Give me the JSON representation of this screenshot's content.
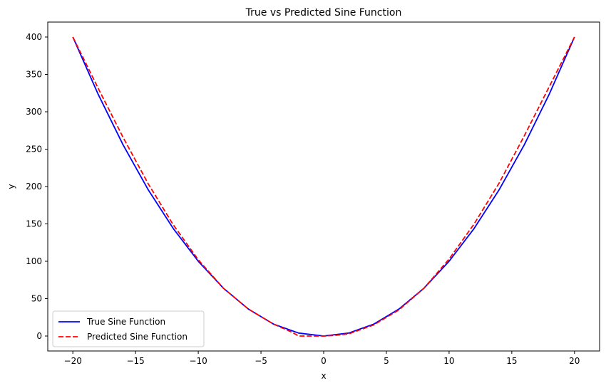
{
  "chart_data": {
    "type": "line",
    "title": "True vs Predicted Sine Function",
    "xlabel": "x",
    "ylabel": "y",
    "xlim": [
      -22,
      22
    ],
    "ylim": [
      -20,
      420
    ],
    "xticks": [
      -20,
      -15,
      -10,
      -5,
      0,
      5,
      10,
      15,
      20
    ],
    "yticks": [
      0,
      50,
      100,
      150,
      200,
      250,
      300,
      350,
      400
    ],
    "grid": false,
    "legend_position": "lower-left",
    "series": [
      {
        "name": "True Sine Function",
        "color": "#0000ff",
        "style": "solid",
        "x": [
          -20,
          -18,
          -16,
          -14,
          -12,
          -10,
          -8,
          -6,
          -4,
          -2,
          0,
          2,
          4,
          6,
          8,
          10,
          12,
          14,
          16,
          18,
          20
        ],
        "y": [
          400,
          324,
          256,
          196,
          144,
          100,
          64,
          36,
          16,
          4,
          0,
          4,
          16,
          36,
          64,
          100,
          144,
          196,
          256,
          324,
          400
        ]
      },
      {
        "name": "Predicted Sine Function",
        "color": "#ff0000",
        "style": "dashed",
        "x": [
          -20,
          -18,
          -16,
          -14,
          -12,
          -10,
          -8,
          -6,
          -4,
          -2.5,
          -2,
          -1,
          0,
          1,
          2,
          4,
          6,
          8,
          10,
          12,
          14,
          16,
          18,
          20
        ],
        "y": [
          400,
          332,
          266,
          204,
          149,
          102,
          64,
          36,
          16,
          5,
          0,
          0,
          0,
          1,
          3,
          15,
          35,
          64,
          103,
          150,
          205,
          268,
          334,
          400
        ]
      }
    ]
  }
}
